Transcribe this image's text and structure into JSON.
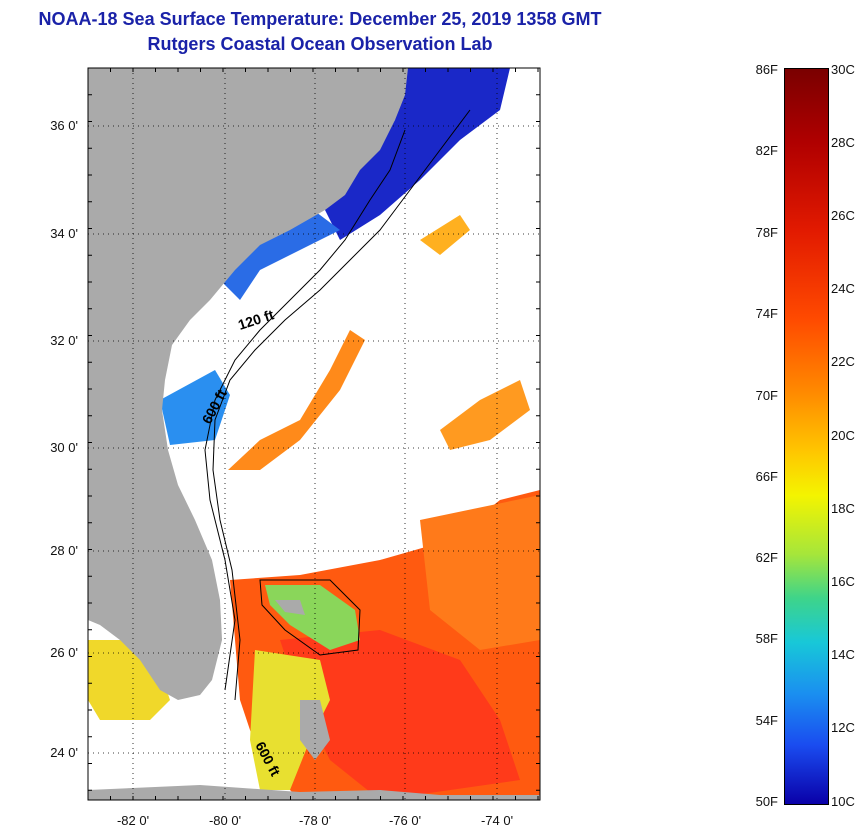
{
  "title": {
    "line1": "NOAA-18 Sea Surface Temperature:  December 25, 2019 1358 GMT",
    "line2": "Rutgers Coastal Ocean Observation Lab"
  },
  "map": {
    "lat_labels": [
      "36 0'",
      "34 0'",
      "32 0'",
      "30 0'",
      "28 0'",
      "26 0'",
      "24 0'"
    ],
    "lon_labels": [
      "-82 0'",
      "-80 0'",
      "-78 0'",
      "-76 0'",
      "-74 0'"
    ],
    "isobath_labels": [
      "120 ft",
      "600 ft",
      "600 ft"
    ],
    "colors": {
      "land": "#aaaaaa",
      "cloud": "#ffffff",
      "cold": "#1a3cd6",
      "mid": "#2a8ff0",
      "warm": "#ff6a10",
      "hot": "#ff3a1a",
      "green": "#8ad65a",
      "yellow": "#f4e41a"
    }
  },
  "colorbar": {
    "f_labels": [
      "86F",
      "82F",
      "78F",
      "74F",
      "70F",
      "66F",
      "62F",
      "58F",
      "54F",
      "50F"
    ],
    "c_labels": [
      "30C",
      "28C",
      "26C",
      "24C",
      "22C",
      "20C",
      "18C",
      "16C",
      "14C",
      "12C",
      "10C"
    ]
  }
}
